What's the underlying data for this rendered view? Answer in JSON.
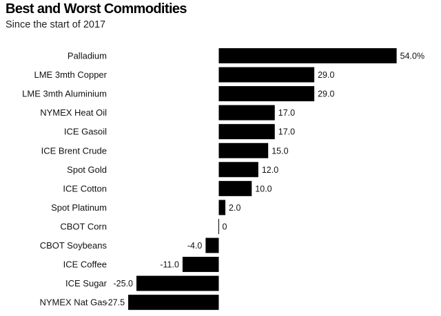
{
  "chart_data": {
    "type": "bar",
    "orientation": "horizontal",
    "title": "Best and Worst Commodities",
    "subtitle": "Since the start of 2017",
    "categories": [
      "Palladium",
      "LME 3mth Copper",
      "LME 3mth Aluminium",
      "NYMEX Heat Oil",
      "ICE Gasoil",
      "ICE Brent Crude",
      "Spot Gold",
      "ICE Cotton",
      "Spot Platinum",
      "CBOT Corn",
      "CBOT Soybeans",
      "ICE Coffee",
      "ICE Sugar",
      "NYMEX Nat Gas"
    ],
    "values": [
      54.0,
      29.0,
      29.0,
      17.0,
      17.0,
      15.0,
      12.0,
      10.0,
      2.0,
      0,
      -4.0,
      -11.0,
      -25.0,
      -27.5
    ],
    "value_labels": [
      "54.0%",
      "29.0",
      "29.0",
      "17.0",
      "17.0",
      "15.0",
      "12.0",
      "10.0",
      "2.0",
      "0",
      "-4.0",
      "-11.0",
      "-25.0",
      "-27.5"
    ],
    "xlim": [
      -27.5,
      54.0
    ],
    "grid": false,
    "legend": "none",
    "bar_color": "#000000"
  }
}
